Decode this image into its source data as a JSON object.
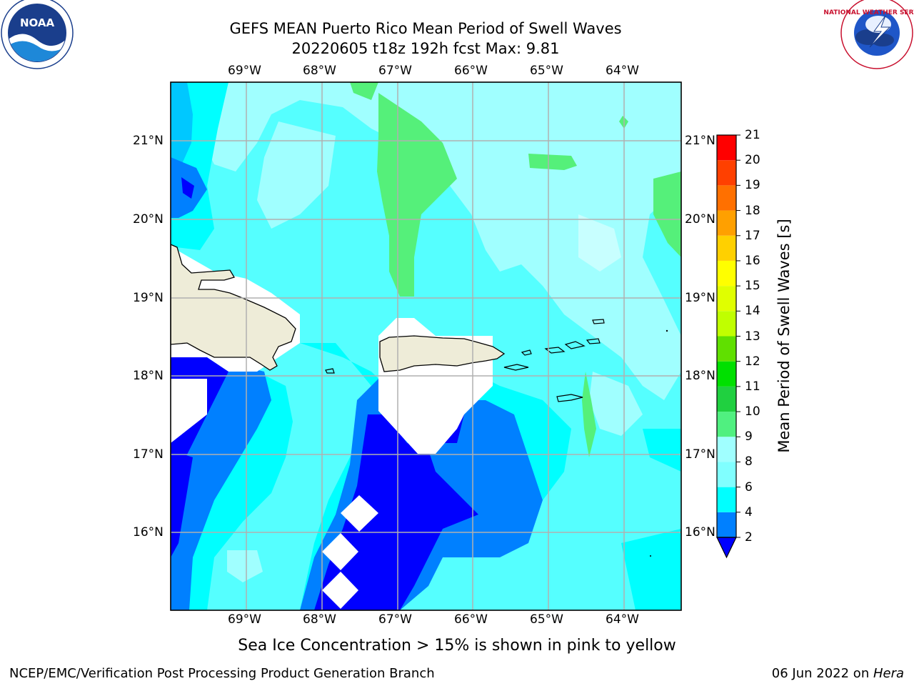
{
  "title": {
    "line1": "GEFS MEAN Puerto Rico Mean Period of Swell Waves",
    "line2": "20220605 t18z 192h fcst   Max: 9.81"
  },
  "logos": {
    "noaa_text": "NOAA",
    "nws_ring_text": "NATIONAL WEATHER SERVICE"
  },
  "axes": {
    "lon_labels": [
      "69°W",
      "68°W",
      "67°W",
      "66°W",
      "65°W",
      "64°W"
    ],
    "lat_labels": [
      "21°N",
      "20°N",
      "19°N",
      "18°N",
      "17°N",
      "16°N"
    ]
  },
  "colorbar": {
    "label": "Mean Period of Swell Waves [s]",
    "ticks": [
      "2",
      "4",
      "6",
      "8",
      "9",
      "10",
      "11",
      "12",
      "13",
      "14",
      "15",
      "16",
      "17",
      "18",
      "19",
      "20",
      "21"
    ],
    "colors": [
      "#0000ff",
      "#0080ff",
      "#00ffff",
      "#80ffff",
      "#a0ffff",
      "#50f080",
      "#20d040",
      "#00e000",
      "#60e000",
      "#c0ff00",
      "#e0ff00",
      "#ffff00",
      "#ffd000",
      "#ffa000",
      "#ff7000",
      "#ff4000",
      "#ff0000"
    ]
  },
  "note": "Sea Ice Concentration > 15% is shown in pink to yellow",
  "footer": {
    "left": "NCEP/EMC/Verification Post Processing Product Generation Branch",
    "right_date": "06 Jun 2022 on ",
    "right_host": "Hera"
  },
  "palette": {
    "land": "#eeecd8",
    "deep_blue": "#0000ff",
    "mid_blue": "#0080ff",
    "cyan": "#00ffff",
    "light_cyan": "#55ffff",
    "pale_cyan": "#a0ffff",
    "green": "#55f07a"
  }
}
